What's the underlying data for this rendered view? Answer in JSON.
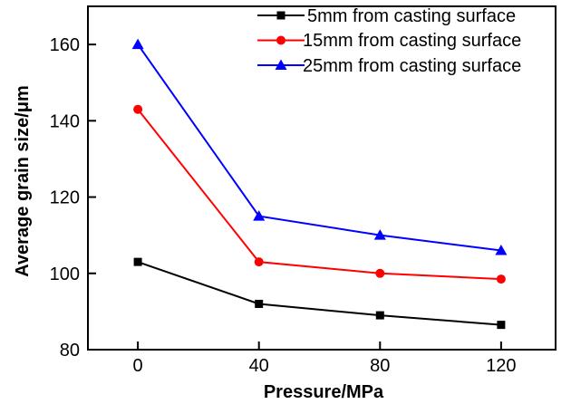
{
  "chart_data": {
    "type": "line",
    "title": "",
    "xlabel": "Pressure/MPa",
    "ylabel": "Average grain size/μm",
    "x": [
      0,
      40,
      80,
      120
    ],
    "series": [
      {
        "name": "5mm from casting surface",
        "color": "#000000",
        "marker": "square",
        "values": [
          103,
          92,
          89,
          86.5
        ]
      },
      {
        "name": "15mm from casting surface",
        "color": "#ff0000",
        "marker": "circle",
        "values": [
          143,
          103,
          100,
          98.5
        ]
      },
      {
        "name": "25mm from casting surface",
        "color": "#0000ff",
        "marker": "triangle",
        "values": [
          160,
          115,
          110,
          106
        ]
      }
    ],
    "xlim": [
      -16.5,
      138
    ],
    "ylim": [
      80,
      170
    ],
    "x_ticks": [
      0,
      40,
      80,
      120
    ],
    "y_ticks": [
      80,
      100,
      120,
      140,
      160
    ],
    "grid": false,
    "legend_position": "top-right",
    "axis_color": "#000000",
    "background": "#ffffff"
  }
}
